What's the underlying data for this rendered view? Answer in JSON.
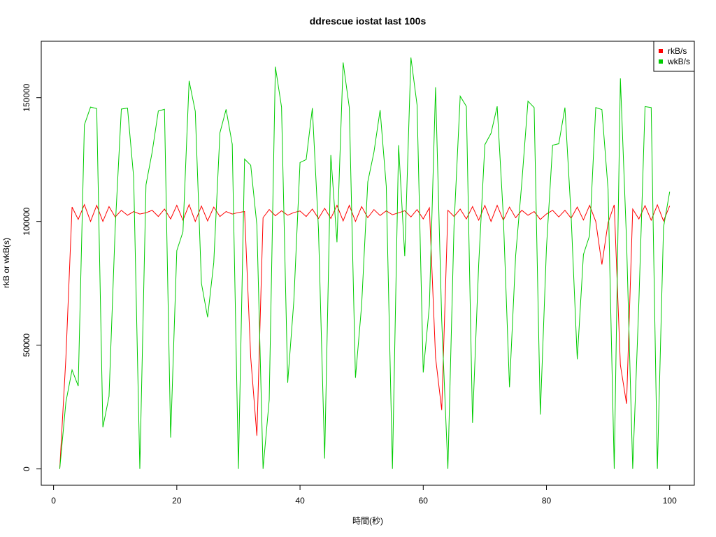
{
  "chart_data": {
    "type": "line",
    "title": "ddrescue iostat last 100s",
    "xlabel": "時間(秒)",
    "ylabel": "rkB or wkB(s)",
    "xlim": [
      -2,
      104
    ],
    "ylim": [
      -6600,
      172800
    ],
    "xticks": [
      0,
      20,
      40,
      60,
      80,
      100
    ],
    "yticks": [
      0,
      50000,
      100000,
      150000
    ],
    "grid": false,
    "legend_position": "top-right",
    "x": [
      1,
      2,
      3,
      4,
      5,
      6,
      7,
      8,
      9,
      10,
      11,
      12,
      13,
      14,
      15,
      16,
      17,
      18,
      19,
      20,
      21,
      22,
      23,
      24,
      25,
      26,
      27,
      28,
      29,
      30,
      31,
      32,
      33,
      34,
      35,
      36,
      37,
      38,
      39,
      40,
      41,
      42,
      43,
      44,
      45,
      46,
      47,
      48,
      49,
      50,
      51,
      52,
      53,
      54,
      55,
      56,
      57,
      58,
      59,
      60,
      61,
      62,
      63,
      64,
      65,
      66,
      67,
      68,
      69,
      70,
      71,
      72,
      73,
      74,
      75,
      76,
      77,
      78,
      79,
      80,
      81,
      82,
      83,
      84,
      85,
      86,
      87,
      88,
      89,
      90,
      91,
      92,
      93,
      94,
      95,
      96,
      97,
      98,
      99,
      100
    ],
    "series": [
      {
        "name": "rkB/s",
        "color": "#ff0000",
        "values": [
          0,
          45000,
          105800,
          100800,
          106800,
          100000,
          106500,
          100000,
          106000,
          101800,
          104500,
          102500,
          104000,
          103000,
          103500,
          104500,
          102000,
          105000,
          101000,
          106500,
          100500,
          106800,
          100000,
          106200,
          100200,
          105800,
          102000,
          104000,
          103000,
          103600,
          104000,
          45000,
          13400,
          101500,
          104800,
          102300,
          104300,
          102500,
          103600,
          104200,
          102000,
          105000,
          101200,
          105300,
          101200,
          106500,
          100200,
          106500,
          100000,
          106000,
          101500,
          104800,
          102400,
          104300,
          102700,
          103500,
          104300,
          101800,
          104800,
          101000,
          105500,
          45000,
          23800,
          104500,
          102000,
          105000,
          101000,
          106000,
          100500,
          106500,
          100000,
          106500,
          100500,
          105800,
          101500,
          104500,
          102500,
          104000,
          100800,
          103000,
          104500,
          101800,
          104500,
          101300,
          105800,
          100600,
          106500,
          100000,
          82600,
          99500,
          106700,
          42000,
          26300,
          105000,
          101000,
          106400,
          100500,
          106700,
          100200,
          106300
        ],
        "values_note": ""
      },
      {
        "name": "wkB/s",
        "color": "#00cc00",
        "values": [
          0,
          27000,
          40000,
          33500,
          139000,
          146200,
          145600,
          16800,
          29300,
          97300,
          145400,
          145800,
          117800,
          0,
          114800,
          128000,
          144600,
          145300,
          12700,
          88200,
          95800,
          156800,
          144500,
          75000,
          61300,
          83400,
          135800,
          145300,
          131200,
          0,
          125200,
          122700,
          98500,
          0,
          27900,
          162500,
          146200,
          34800,
          68000,
          123800,
          125000,
          145800,
          96600,
          4200,
          126800,
          91600,
          164200,
          146000,
          36800,
          66200,
          116000,
          128000,
          145000,
          114200,
          0,
          130800,
          86000,
          166200,
          147000,
          39000,
          66000,
          154200,
          60000,
          0,
          98400,
          150600,
          146500,
          18600,
          82600,
          131000,
          135600,
          146500,
          102000,
          33000,
          86200,
          115700,
          148600,
          146000,
          22000,
          89400,
          130800,
          131400,
          146000,
          102400,
          44300,
          86600,
          94300,
          146000,
          145200,
          113000,
          0,
          157800,
          92000,
          0,
          67500,
          146400,
          146000,
          0,
          97600,
          112000
        ]
      }
    ]
  },
  "legend": {
    "items": [
      {
        "label": "rkB/s",
        "color": "#ff0000"
      },
      {
        "label": "wkB/s",
        "color": "#00cc00"
      }
    ]
  }
}
